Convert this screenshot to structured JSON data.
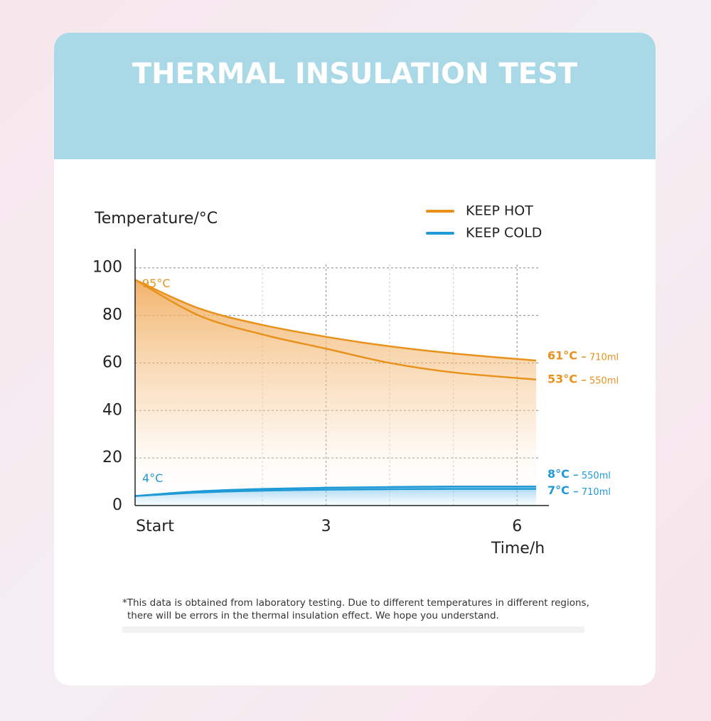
{
  "chart_data": {
    "type": "line",
    "title": "THERMAL INSULATION TEST",
    "y_label": "Temperature/°C",
    "x_label": "Time/h",
    "x": [
      0,
      1,
      2,
      3,
      4,
      5,
      6.3
    ],
    "xlim": [
      0,
      6.5
    ],
    "ylim": [
      0,
      108
    ],
    "xticks": [
      {
        "value": 0,
        "label": "Start"
      },
      3,
      6
    ],
    "x_minor_grid": [
      2,
      4,
      5
    ],
    "yticks": [
      0,
      20,
      40,
      60,
      80,
      100
    ],
    "grid": true,
    "legend": [
      {
        "name": "KEEP HOT",
        "color": "#e8921c"
      },
      {
        "name": "KEEP COLD",
        "color": "#1f9ad6"
      }
    ],
    "series": [
      {
        "group": "KEEP HOT",
        "name": "710ml",
        "color": "#e8921c",
        "values": [
          95,
          83,
          76,
          71,
          67,
          64,
          61
        ],
        "value_labels": [
          "95°C",
          null,
          null,
          null,
          null,
          null,
          "61°C"
        ]
      },
      {
        "group": "KEEP HOT",
        "name": "550ml",
        "color": "#e8921c",
        "values": [
          95,
          80,
          72,
          66,
          60,
          56,
          53
        ],
        "value_labels": [
          null,
          null,
          null,
          null,
          null,
          null,
          "53°C"
        ]
      },
      {
        "group": "KEEP COLD",
        "name": "550ml",
        "color": "#1f9ad6",
        "values": [
          4,
          6,
          7,
          7.5,
          7.8,
          8,
          8
        ],
        "value_labels": [
          "4°C",
          null,
          null,
          null,
          null,
          null,
          "8°C"
        ]
      },
      {
        "group": "KEEP COLD",
        "name": "710ml",
        "color": "#1f9ad6",
        "values": [
          4,
          5.5,
          6.3,
          6.7,
          6.9,
          7,
          7
        ],
        "value_labels": [
          null,
          null,
          null,
          null,
          null,
          null,
          "7°C"
        ]
      }
    ],
    "footnote": [
      "*This data is obtained from laboratory testing. Due to different temperatures in different regions,",
      "there will be errors in the thermal insulation effect. We hope you understand."
    ]
  }
}
